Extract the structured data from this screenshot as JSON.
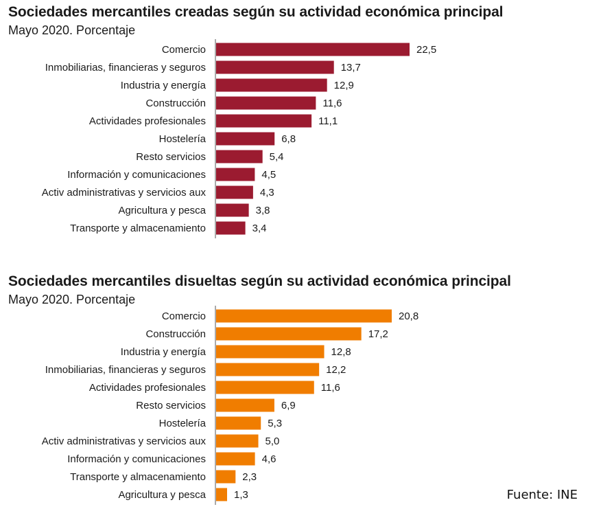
{
  "source": "Fuente: INE",
  "chart_data": [
    {
      "type": "bar",
      "orientation": "horizontal",
      "title": "Sociedades mercantiles creadas según su actividad económica principal",
      "subtitle": "Mayo 2020. Porcentaje",
      "color": "#9b1b30",
      "categories": [
        "Comercio",
        "Inmobiliarias, financieras y seguros",
        "Industria y energía",
        "Construcción",
        "Actividades profesionales",
        "Hostelería",
        "Resto servicios",
        "Información y comunicaciones",
        "Activ administrativas y servicios aux",
        "Agricultura y pesca",
        "Transporte y almacenamiento"
      ],
      "values": [
        22.5,
        13.7,
        12.9,
        11.6,
        11.1,
        6.8,
        5.4,
        4.5,
        4.3,
        3.8,
        3.4
      ],
      "value_labels": [
        "22,5",
        "13,7",
        "12,9",
        "11,6",
        "11,1",
        "6,8",
        "5,4",
        "4,5",
        "4,3",
        "3,8",
        "3,4"
      ],
      "xlim": [
        0,
        22.5
      ],
      "grid": false
    },
    {
      "type": "bar",
      "orientation": "horizontal",
      "title": "Sociedades mercantiles disueltas según su actividad económica principal",
      "subtitle": "Mayo 2020. Porcentaje",
      "color": "#f07d00",
      "categories": [
        "Comercio",
        "Construcción",
        "Industria y energía",
        "Inmobiliarias, financieras y seguros",
        "Actividades profesionales",
        "Resto servicios",
        "Hostelería",
        "Activ administrativas y servicios aux",
        "Información y comunicaciones",
        "Transporte y almacenamiento",
        "Agricultura y pesca"
      ],
      "values": [
        20.8,
        17.2,
        12.8,
        12.2,
        11.6,
        6.9,
        5.3,
        5.0,
        4.6,
        2.3,
        1.3
      ],
      "value_labels": [
        "20,8",
        "17,2",
        "12,8",
        "12,2",
        "11,6",
        "6,9",
        "5,3",
        "5,0",
        "4,6",
        "2,3",
        "1,3"
      ],
      "xlim": [
        0,
        20.8
      ],
      "grid": false
    }
  ]
}
